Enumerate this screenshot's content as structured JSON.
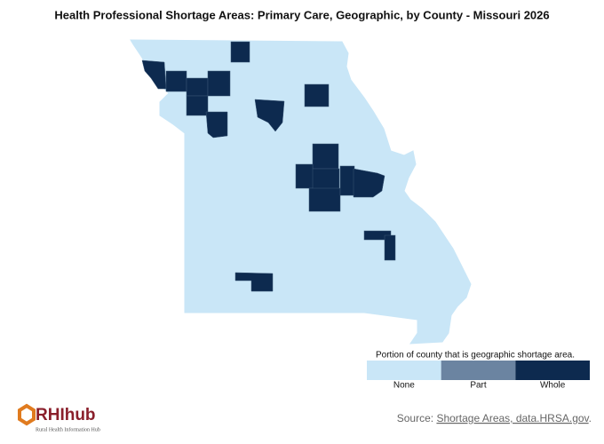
{
  "header": {
    "title": "Health Professional Shortage Areas: Primary Care, Geographic, by County - Missouri 2026"
  },
  "legend": {
    "title": "Portion of county that is geographic shortage area.",
    "items": [
      {
        "label": "None",
        "color": "#c9e6f7"
      },
      {
        "label": "Part",
        "color": "#6b84a1"
      },
      {
        "label": "Whole",
        "color": "#0d2a4f"
      }
    ]
  },
  "footer": {
    "source_prefix": "Source:",
    "source_link": "Shortage Areas, data.HRSA.gov",
    "source_suffix": ".",
    "logo": "RHIhub",
    "logo_subtitle": "Rural Health Information Hub"
  }
}
